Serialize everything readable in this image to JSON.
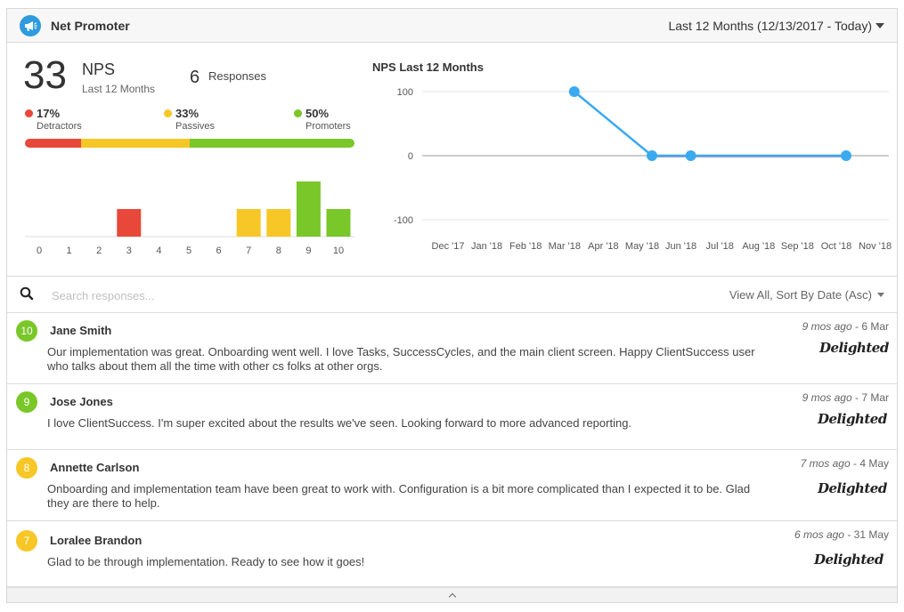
{
  "header": {
    "title": "Net Promoter",
    "range": "Last 12 Months (12/13/2017 - Today)"
  },
  "summary": {
    "nps_value": "33",
    "nps_label": "NPS",
    "nps_sub": "Last 12 Months",
    "responses_count": "6",
    "responses_label": "Responses",
    "categories": [
      {
        "pct": "17%",
        "name": "Detractors",
        "share": 17,
        "color": "#e8483a"
      },
      {
        "pct": "33%",
        "name": "Passives",
        "share": 33,
        "color": "#f6c727"
      },
      {
        "pct": "50%",
        "name": "Promoters",
        "share": 50,
        "color": "#7ac729"
      }
    ]
  },
  "histogram": {
    "scores": [
      "0",
      "1",
      "2",
      "3",
      "4",
      "5",
      "6",
      "7",
      "8",
      "9",
      "10"
    ],
    "counts": [
      0,
      0,
      0,
      1,
      0,
      0,
      0,
      1,
      1,
      2,
      1
    ],
    "colors": {
      "detractor": "#e8483a",
      "passive": "#f6c727",
      "promoter": "#7ac729"
    }
  },
  "chart_data": {
    "type": "line",
    "title": "NPS Last 12 Months",
    "categories": [
      "Dec '17",
      "Jan '18",
      "Feb '18",
      "Mar '18",
      "Apr '18",
      "May '18",
      "Jun '18",
      "Jul '18",
      "Aug '18",
      "Sep '18",
      "Oct '18",
      "Nov '18"
    ],
    "series": [
      {
        "values": [
          null,
          null,
          null,
          100,
          null,
          0,
          0,
          null,
          null,
          null,
          0,
          null
        ],
        "color": "#3aaaf0"
      }
    ],
    "yticks": [
      "100",
      "0",
      "-100"
    ],
    "ylim": [
      -100,
      100
    ],
    "grid": true
  },
  "search": {
    "placeholder": "Search responses...",
    "sort_label": "View All, Sort By Date (Asc)"
  },
  "responses": [
    {
      "score": "10",
      "color": "#7ac729",
      "name": "Jane Smith",
      "ago": "9 mos ago",
      "date": " - 6 Mar",
      "text": "Our implementation was great. Onboarding went well. I love Tasks, SuccessCycles, and the main client screen. Happy ClientSuccess user who talks about them all the time with other cs folks at other orgs.",
      "source": "Delighted"
    },
    {
      "score": "9",
      "color": "#7ac729",
      "name": "Jose Jones",
      "ago": "9 mos ago",
      "date": " - 7 Mar",
      "text": "I love ClientSuccess. I'm super excited about the results we've seen. Looking forward to more advanced reporting.",
      "source": "Delighted"
    },
    {
      "score": "8",
      "color": "#f6c727",
      "name": "Annette Carlson",
      "ago": "7 mos ago",
      "date": " - 4 May",
      "text": "Onboarding and implementation team have been great to work with. Configuration is a bit more complicated than I expected it to be. Glad they are there to help.",
      "source": "Delighted"
    },
    {
      "score": "7",
      "color": "#f6c727",
      "name": "Loralee Brandon",
      "ago": "6 mos ago",
      "date": " - 31 May",
      "text": "Glad to be through implementation. Ready to see how it goes!",
      "source": "Delighted"
    }
  ],
  "icons": {
    "header": "megaphone-icon",
    "search": "search-icon",
    "footer": "chevron-up-icon"
  }
}
